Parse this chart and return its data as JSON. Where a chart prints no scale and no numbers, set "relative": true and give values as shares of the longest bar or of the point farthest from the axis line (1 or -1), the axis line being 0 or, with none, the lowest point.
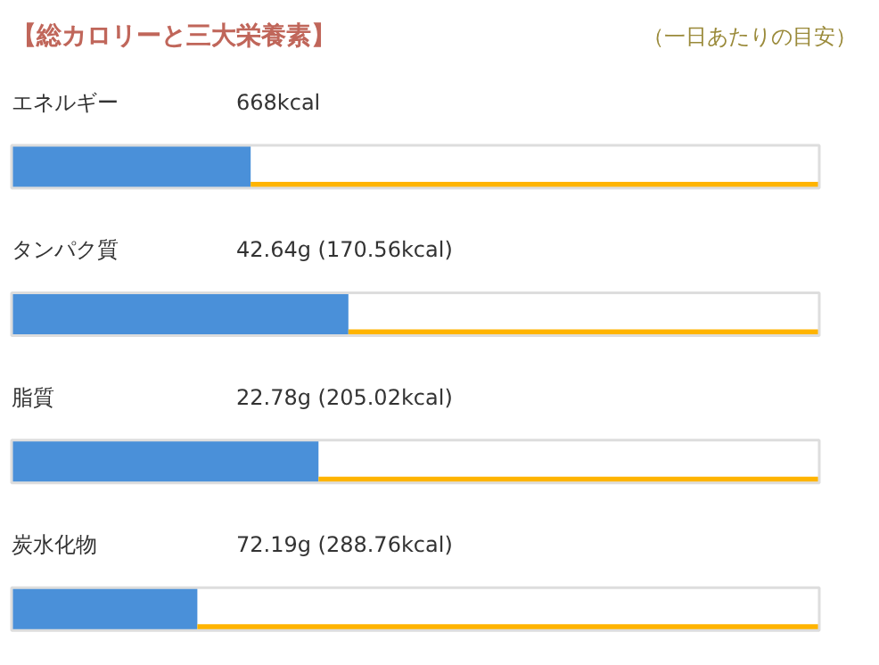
{
  "chart_data": {
    "type": "bar",
    "orientation": "horizontal",
    "relative": true,
    "stacked": true,
    "title": "【総カロリーと三大栄養素】",
    "subtitle": "（一日あたりの目安）",
    "categories": [
      "エネルギー",
      "タンパク質",
      "脂質",
      "炭水化物"
    ],
    "series": [
      {
        "color": "#4a90d9",
        "values": [
          0.296,
          0.417,
          0.38,
          0.23
        ]
      },
      {
        "color": "#ffb400",
        "values": [
          0.704,
          0.583,
          0.62,
          0.77
        ]
      }
    ],
    "annotations": [
      "668kcal",
      "42.64g (170.56kcal)",
      "22.78g (205.02kcal)",
      "72.19g (288.76kcal)"
    ],
    "grid": false,
    "tick_labels": false
  }
}
